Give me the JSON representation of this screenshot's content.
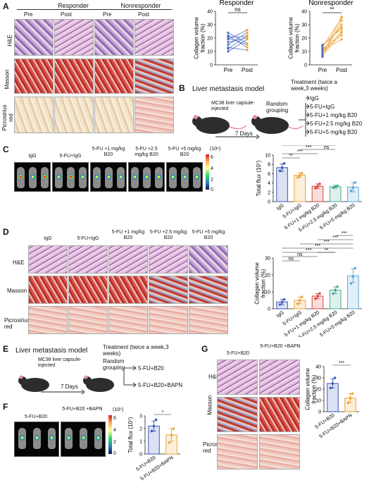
{
  "panels": {
    "A": {
      "label": "A",
      "groups": [
        "Responder",
        "Nonresponder"
      ],
      "timepoints": [
        "Pre",
        "Post"
      ],
      "row_labels": [
        "H&E",
        "Masson",
        "Picrosirius red"
      ]
    },
    "B": {
      "label": "B",
      "title": "Liver metastasis model",
      "note": "MC38 liver capsule-injected",
      "days": "7 Days",
      "random": "Random grouping",
      "treatment": "Treatment (twice a week,3 weeks)",
      "arms": [
        "IgG",
        "5-FU+IgG",
        "5-FU+1 mg/kg B20",
        "5-FU+2.5 mg/kg B20",
        "5-FU+5 mg/kg B20"
      ]
    },
    "C": {
      "label": "C",
      "groups": [
        "IgG",
        "5-FU+IgG",
        "5-FU +1 mg/kg B20",
        "5-FU +2.5 mg/kg B20",
        "5-FU +5 mg/kg B20"
      ],
      "colorbar_unit": "(10⁶)",
      "colorbar_ticks": [
        "6",
        "4",
        "2",
        "0"
      ]
    },
    "D": {
      "label": "D",
      "groups": [
        "IgG",
        "5-FU+IgG",
        "5-FU +1 mg/kg B20",
        "5-FU +2.5 mg/kg B20",
        "5-FU +5 mg/kg B20"
      ],
      "row_labels": [
        "H&E",
        "Masson",
        "Picrosirius red"
      ]
    },
    "E": {
      "label": "E",
      "title": "Liver metastasis model",
      "note": "MC38 liver capsule-injected",
      "days": "7 Days",
      "random": "Random grouping",
      "treatment": "Treatment (twice a week,3 weeks)",
      "arms": [
        "5-FU+B20",
        "5-FU+B20+BAPN"
      ]
    },
    "F": {
      "label": "F",
      "groups": [
        "5-FU+B20",
        "5-FU+B20 +BAPN"
      ],
      "colorbar_unit": "(10⁶)",
      "colorbar_ticks": [
        "6",
        "4",
        "2",
        "0"
      ]
    },
    "G": {
      "label": "G",
      "groups": [
        "5-FU+B20",
        "5-FU+B20 +BAPN"
      ],
      "row_labels": [
        "H&E",
        "Masson",
        "Picrosirius red"
      ]
    }
  },
  "colors": {
    "responder_line": "#4f6ec4",
    "post_line": "#f0a63c",
    "bar_blue": "#3a58b8",
    "bar_orange": "#e9a437",
    "bar_red": "#d9453d",
    "bar_green": "#48ad8e",
    "bar_lightblue": "#5aa7d6"
  },
  "chart_data": [
    {
      "id": "A-responder",
      "type": "line",
      "title": "Responder",
      "ylabel": "Collagen volume fraction (%)",
      "categories": [
        "Pre",
        "Post"
      ],
      "ylim": [
        0,
        40
      ],
      "yticks": [
        0,
        10,
        20,
        30,
        40
      ],
      "significance": "ns",
      "pairs": [
        [
          12,
          22
        ],
        [
          20,
          15
        ],
        [
          17,
          20
        ],
        [
          22,
          13
        ],
        [
          15,
          24
        ],
        [
          10,
          19
        ],
        [
          24,
          16
        ],
        [
          19,
          26
        ],
        [
          13,
          11
        ],
        [
          21,
          21
        ]
      ]
    },
    {
      "id": "A-nonresponder",
      "type": "line",
      "title": "Nonresponder",
      "ylabel": "Collagen volume fraction (%)",
      "categories": [
        "Pre",
        "Post"
      ],
      "ylim": [
        0,
        40
      ],
      "yticks": [
        0,
        10,
        20,
        30,
        40
      ],
      "significance": "**",
      "pairs": [
        [
          6,
          33
        ],
        [
          9,
          25
        ],
        [
          10,
          30
        ],
        [
          12,
          22
        ],
        [
          8,
          36
        ],
        [
          14,
          28
        ],
        [
          11,
          19
        ],
        [
          7,
          24
        ],
        [
          13,
          35
        ],
        [
          15,
          27
        ]
      ]
    },
    {
      "id": "C",
      "type": "bar",
      "ylabel": "Total flux (10⁷)",
      "categories": [
        "IgG",
        "5-FU+IgG",
        "5-FU+1 mg/kg B20",
        "5-FU+2.5 mg/kg B20",
        "5-FU+5 mg/kg B20"
      ],
      "values": [
        7.3,
        5.7,
        3.3,
        3.2,
        3.1
      ],
      "errors": [
        0.8,
        0.5,
        0.5,
        0.3,
        1.0
      ],
      "points": [
        [
          6.6,
          7.3,
          8.2
        ],
        [
          5.2,
          5.6,
          6.1
        ],
        [
          2.9,
          3.3,
          3.8
        ],
        [
          3.0,
          3.2,
          3.4
        ],
        [
          2.3,
          3.0,
          4.1
        ]
      ],
      "ylim": [
        0,
        10
      ],
      "yticks": [
        0,
        2,
        4,
        6,
        8,
        10
      ],
      "significance": [
        "**",
        "***",
        "***",
        "***",
        "***",
        "***",
        "***",
        "ns"
      ]
    },
    {
      "id": "D",
      "type": "bar",
      "ylabel": "Collagen volume fraction (%)",
      "categories": [
        "IgG",
        "5-FU+IgG",
        "5-FU+1 mg/kg B20",
        "5-FU+2.5 mg/kg B20",
        "5-FU+5 mg/kg B20"
      ],
      "values": [
        4,
        5,
        7.5,
        11,
        19.5
      ],
      "errors": [
        1.5,
        2,
        1.5,
        2,
        4
      ],
      "points": [
        [
          2.5,
          4,
          5.5
        ],
        [
          3,
          5,
          7
        ],
        [
          6,
          7.5,
          9
        ],
        [
          9,
          11,
          13
        ],
        [
          15,
          19,
          24
        ]
      ],
      "ylim": [
        0,
        30
      ],
      "yticks": [
        0,
        10,
        20,
        30
      ],
      "significance": [
        "***",
        "***",
        "***",
        "***",
        "**",
        "ns",
        "ns",
        "***"
      ]
    },
    {
      "id": "F",
      "type": "bar",
      "ylabel": "Total flux (10⁷)",
      "categories": [
        "5-FU+B20",
        "5-FU+B20+BAPN"
      ],
      "values": [
        2.2,
        1.5
      ],
      "errors": [
        0.4,
        0.5
      ],
      "points": [
        [
          1.8,
          2.2,
          2.7
        ],
        [
          0.9,
          1.5,
          2.0
        ]
      ],
      "ylim": [
        0,
        3
      ],
      "yticks": [
        0,
        1,
        2,
        3
      ],
      "significance": [
        "*"
      ]
    },
    {
      "id": "G",
      "type": "bar",
      "ylabel": "Collagen volume fraction (%)",
      "categories": [
        "5-FU+B20",
        "5-FU+B20+BAPN"
      ],
      "values": [
        25,
        12
      ],
      "errors": [
        4,
        4
      ],
      "points": [
        [
          21,
          25,
          30
        ],
        [
          8,
          12,
          16
        ]
      ],
      "ylim": [
        0,
        40
      ],
      "yticks": [
        0,
        10,
        20,
        30,
        40
      ],
      "significance": [
        "***"
      ]
    }
  ]
}
